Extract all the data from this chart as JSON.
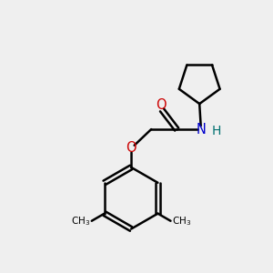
{
  "background_color": "#efefef",
  "bond_color": "#000000",
  "O_color": "#cc0000",
  "N_color": "#0000cc",
  "H_color": "#007070",
  "line_width": 1.8,
  "font_size": 10.5,
  "figsize": [
    3.0,
    3.0
  ],
  "dpi": 100,
  "xlim": [
    0,
    10
  ],
  "ylim": [
    0,
    10
  ]
}
